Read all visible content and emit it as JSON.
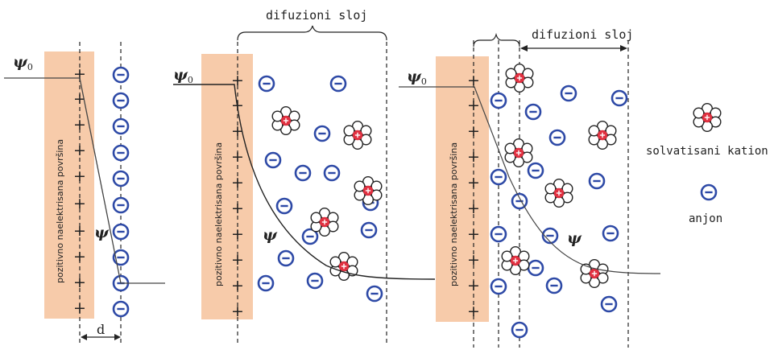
{
  "panels": [
    {
      "plate_label": "pozitivno naelektrisana površina",
      "psi0_symbol": "ψ",
      "psi0_subscript": "0",
      "psi_label": "ψ",
      "distance_label": "d"
    },
    {
      "plate_label": "pozitivno naelektrisana površina",
      "psi0_symbol": "ψ",
      "psi0_subscript": "0",
      "psi_label": "ψ",
      "layer_label": "difuzioni sloj"
    },
    {
      "plate_label": "pozitivno naelektrisana površina",
      "psi0_symbol": "ψ",
      "psi0_subscript": "0",
      "psi_label": "ψ",
      "layer_label": "difuzioni sloj"
    }
  ],
  "legend": {
    "cation_label": "solvatisani kation",
    "anion_label": "anjon"
  },
  "symbols": {
    "plus": "+"
  },
  "colors": {
    "plate": "#F7CBAA",
    "anion": "#2D49A6",
    "cation_center": "#E03040",
    "cation_petal_stroke": "#222222",
    "line": "#222222"
  }
}
